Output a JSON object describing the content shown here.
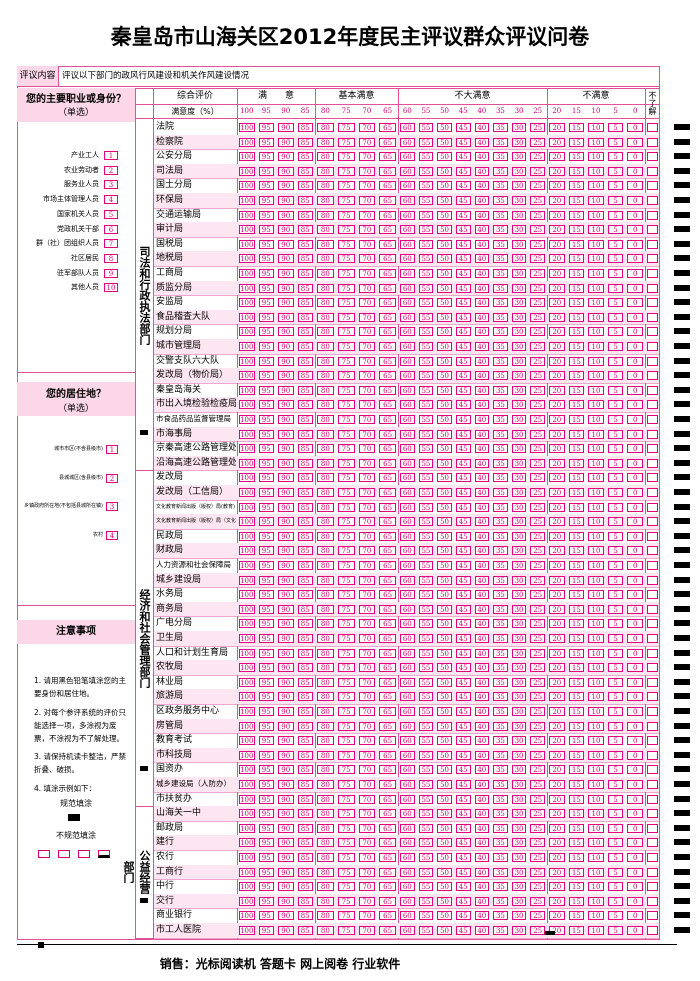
{
  "title": "秦皇岛市山海关区2012年度民主评议群众评议问卷",
  "content": {
    "label": "评议内容",
    "text": "评议以下部门的政风行风建设和机关作风建设情况"
  },
  "header": {
    "overall": "综合评价",
    "satisfaction": "满意度（%）",
    "not_know": "不了解"
  },
  "rating_groups": [
    {
      "name": "满　　意",
      "scores": [
        100,
        95,
        90,
        85
      ]
    },
    {
      "name": "基本满意",
      "scores": [
        80,
        75,
        70,
        65
      ]
    },
    {
      "name": "不大满意",
      "scores": [
        60,
        55,
        50,
        45,
        40,
        35,
        30,
        25
      ]
    },
    {
      "name": "不满意",
      "scores": [
        20,
        15,
        10,
        5,
        0
      ]
    }
  ],
  "occupation": {
    "title": "您的主要职业或身份？",
    "note": "（单选）",
    "options": [
      {
        "label": "产业工人",
        "code": 1
      },
      {
        "label": "农业劳动者",
        "code": 2
      },
      {
        "label": "服务业人员",
        "code": 3
      },
      {
        "label": "市场主体管理人员",
        "code": 4
      },
      {
        "label": "国家机关人员",
        "code": 5
      },
      {
        "label": "党政机关干部",
        "code": 6
      },
      {
        "label": "群（社）团组织人员",
        "code": 7
      },
      {
        "label": "社区居民",
        "code": 8
      },
      {
        "label": "驻军部队人员",
        "code": 9
      },
      {
        "label": "其他人员",
        "code": 10
      }
    ]
  },
  "residence": {
    "title": "您的居住地？",
    "note": "（单选）",
    "options": [
      {
        "label": "城市市区(不含县级市)",
        "code": 1
      },
      {
        "label": "县城城区(含县级市)",
        "code": 2
      },
      {
        "label": "乡镇政府所在地(不包括县城所在镇)",
        "code": 3
      },
      {
        "label": "农村",
        "code": 4
      }
    ]
  },
  "notes": {
    "title": "注意事项",
    "items": [
      "1. 请用黑色铅笔填涂您的主要身份和居住地。",
      "2. 对每个参评系统的评价只能选择一项，多涂视为废票，不涂视为不了解处理。",
      "3. 请保持机读卡整洁，严禁折叠、破损。",
      "4. 填涂示例如下："
    ],
    "correct_label": "规范填涂",
    "incorrect_label": "不规范填涂"
  },
  "departments": [
    {
      "group": "司法和行政执法部门",
      "items": [
        "法院",
        "检察院",
        "公安分局",
        "司法局",
        "国土分局",
        "环保局",
        "交通运输局",
        "审计局",
        "国税局",
        "地税局",
        "工商局",
        "质监分局",
        "安监局",
        "食品稽查大队",
        "规划分局",
        "城市管理局",
        "交警支队六大队",
        "发改局（物价局）",
        "秦皇岛海关",
        "市出入境检验检疫局",
        "市食品药品监督管理局",
        "市海事局",
        "京秦高速公路管理处",
        "沿海高速公路管理处"
      ]
    },
    {
      "group": "经济和社会管理部门",
      "items": [
        "发改局",
        "发改局（工信局）",
        "文化教育新闻出版（版权）局(教育)",
        "文化教育新闻出版（版权）局（文化体育）",
        "民政局",
        "财政局",
        "人力资源和社会保障局",
        "城乡建设局",
        "水务局",
        "商务局",
        "广电分局",
        "卫生局",
        "人口和计划生育局",
        "农牧局",
        "林业局",
        "旅游局",
        "区政务服务中心",
        "房管局",
        "教育考试",
        "市科技局",
        "国资办",
        "城乡建设局（人防办）",
        "市扶贫办"
      ]
    },
    {
      "group": "公益经营部门",
      "items": [
        "山海关一中",
        "邮政局",
        "建行",
        "农行",
        "工商行",
        "中行",
        "交行",
        "商业银行",
        "市工人医院"
      ]
    }
  ],
  "footer": "销售：光标阅读机 答题卡 网上阅卷 行业软件"
}
